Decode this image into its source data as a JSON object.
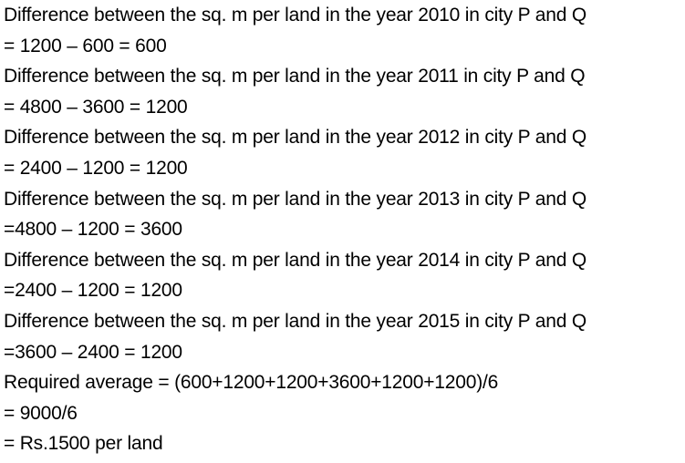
{
  "lines": [
    "Difference between the sq. m per land in the year 2010 in city P and Q",
    "= 1200 – 600 = 600",
    "Difference between the sq. m per land in the year 2011 in city P and Q",
    "= 4800 – 3600 = 1200",
    "Difference between the sq. m per land in the year 2012 in city P and Q",
    "= 2400 – 1200 = 1200",
    "Difference between the sq. m per land in the year 2013 in city P and Q",
    "=4800 – 1200 = 3600",
    "Difference between the sq. m per land in the year 2014 in city P and Q",
    "=2400 – 1200 = 1200",
    "Difference between the sq. m per land in the year 2015 in city P and Q",
    "=3600 – 2400 = 1200",
    "Required average = (600+1200+1200+3600+1200+1200)/6",
    "= 9000/6",
    "= Rs.1500 per land"
  ]
}
